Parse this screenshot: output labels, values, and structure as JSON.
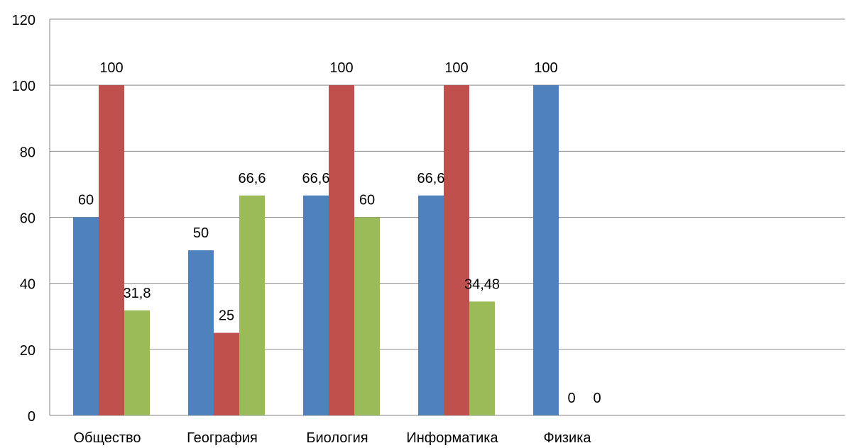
{
  "chart_data": {
    "type": "bar",
    "categories": [
      "Общество",
      "География",
      "Биология",
      "Информатика",
      "Физика"
    ],
    "series": [
      {
        "values": [
          60,
          50,
          66.6,
          66.6,
          100
        ],
        "labels": [
          "60",
          "50",
          "66,6",
          "66,6",
          "100"
        ],
        "color": "#4F81BD"
      },
      {
        "values": [
          100,
          25,
          100,
          100,
          0
        ],
        "labels": [
          "100",
          "25",
          "100",
          "100",
          "0"
        ],
        "color": "#C0504D"
      },
      {
        "values": [
          31.8,
          66.6,
          60,
          34.48,
          0
        ],
        "labels": [
          "31,8",
          "66,6",
          "60",
          "34,48",
          "0"
        ],
        "color": "#9BBB59"
      }
    ],
    "yticks": [
      0,
      20,
      40,
      60,
      80,
      100,
      120
    ],
    "ylim": [
      0,
      120
    ],
    "grid": true,
    "gridline_color": "#868686"
  }
}
